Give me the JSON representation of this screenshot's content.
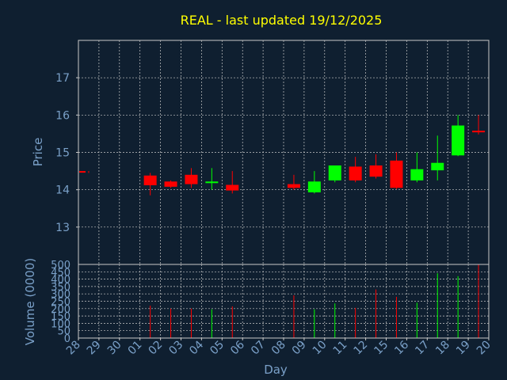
{
  "title": "REAL - last updated 19/12/2025",
  "colors": {
    "background": "#0f1f30",
    "title": "#ffff00",
    "axis_text": "#7aa0c8",
    "grid": "#c8c8c8",
    "axis_line": "#c8c8c8",
    "up": "#00ff00",
    "down": "#ff0000"
  },
  "chart_data": {
    "type": "candlestick",
    "xlabel": "Day",
    "price_ylabel": "Price",
    "volume_ylabel": "Volume (0000)",
    "price_ylim": [
      12,
      18
    ],
    "price_ticks": [
      13,
      14,
      15,
      16,
      17
    ],
    "volume_ylim": [
      0,
      500
    ],
    "volume_ticks": [
      0,
      50,
      100,
      150,
      200,
      250,
      300,
      350,
      400,
      450,
      500
    ],
    "x_ticks": [
      "28",
      "29",
      "30",
      "01",
      "02",
      "03",
      "04",
      "05",
      "06",
      "07",
      "08",
      "09",
      "10",
      "11",
      "12",
      "15",
      "16",
      "17",
      "18",
      "19",
      "20"
    ],
    "candles": [
      {
        "day": "28",
        "open": 14.5,
        "high": 14.5,
        "low": 14.45,
        "close": 14.47,
        "volume": 0
      },
      {
        "day": "01",
        "open": 14.38,
        "high": 14.45,
        "low": 13.85,
        "close": 14.12,
        "volume": 220
      },
      {
        "day": "02",
        "open": 14.22,
        "high": 14.25,
        "low": 14.05,
        "close": 14.08,
        "volume": 200
      },
      {
        "day": "03",
        "open": 14.4,
        "high": 14.58,
        "low": 14.05,
        "close": 14.15,
        "volume": 200
      },
      {
        "day": "04",
        "open": 14.18,
        "high": 14.58,
        "low": 14.0,
        "close": 14.22,
        "volume": 195
      },
      {
        "day": "05",
        "open": 14.13,
        "high": 14.5,
        "low": 13.9,
        "close": 13.98,
        "volume": 215
      },
      {
        "day": "08",
        "open": 14.15,
        "high": 14.4,
        "low": 14.0,
        "close": 14.05,
        "volume": 290
      },
      {
        "day": "09",
        "open": 13.93,
        "high": 14.5,
        "low": 13.9,
        "close": 14.22,
        "volume": 195
      },
      {
        "day": "10",
        "open": 14.25,
        "high": 14.65,
        "low": 14.2,
        "close": 14.65,
        "volume": 235
      },
      {
        "day": "11",
        "open": 14.62,
        "high": 14.88,
        "low": 14.2,
        "close": 14.25,
        "volume": 205
      },
      {
        "day": "12",
        "open": 14.65,
        "high": 14.95,
        "low": 14.3,
        "close": 14.35,
        "volume": 330
      },
      {
        "day": "15",
        "open": 14.78,
        "high": 15.0,
        "low": 14.02,
        "close": 14.05,
        "volume": 280
      },
      {
        "day": "16",
        "open": 14.25,
        "high": 15.0,
        "low": 14.2,
        "close": 14.55,
        "volume": 240
      },
      {
        "day": "17",
        "open": 14.52,
        "high": 15.45,
        "low": 14.25,
        "close": 14.72,
        "volume": 440
      },
      {
        "day": "18",
        "open": 14.92,
        "high": 16.0,
        "low": 14.9,
        "close": 15.72,
        "volume": 420
      },
      {
        "day": "19",
        "open": 15.58,
        "high": 16.0,
        "low": 15.48,
        "close": 15.55,
        "volume": 500
      }
    ]
  }
}
